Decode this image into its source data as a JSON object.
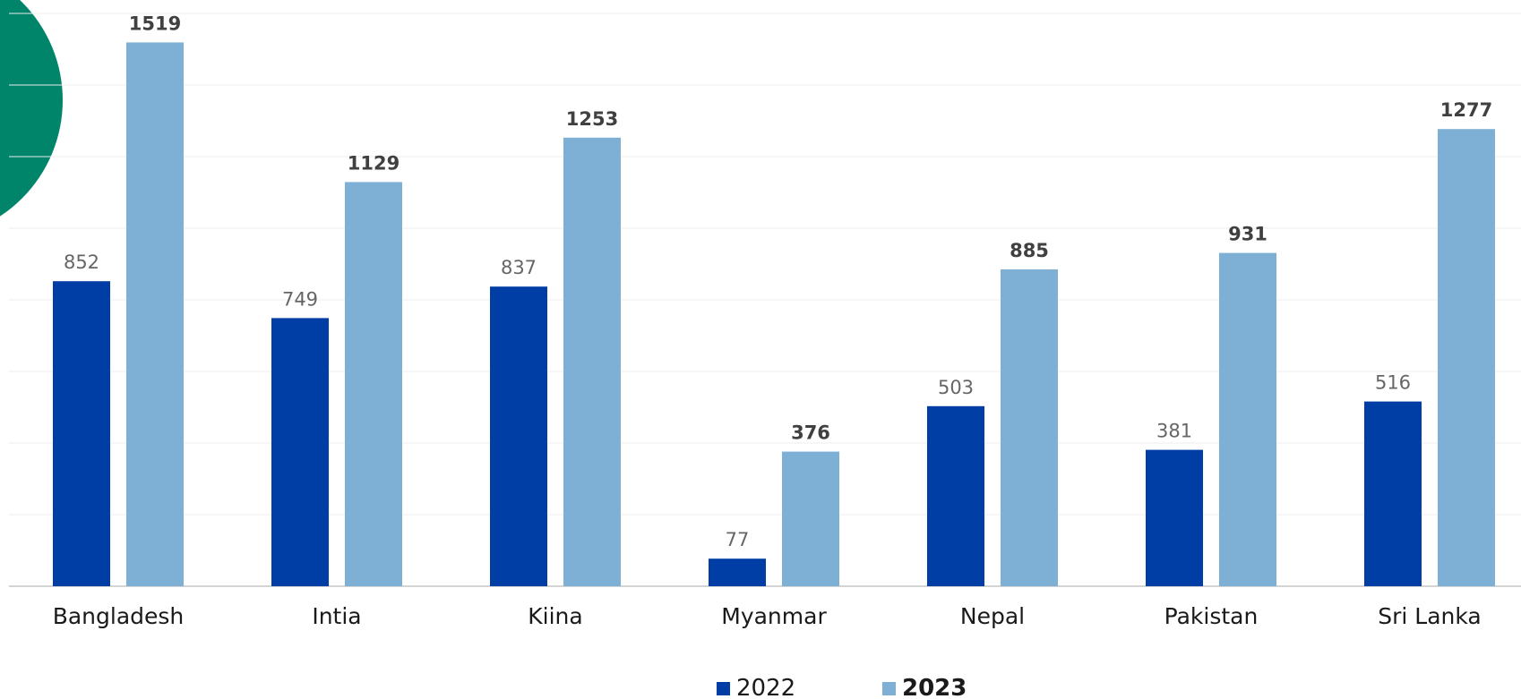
{
  "chart_data": {
    "type": "bar",
    "categories": [
      "Bangladesh",
      "Intia",
      "Kiina",
      "Myanmar",
      "Nepal",
      "Pakistan",
      "Sri Lanka"
    ],
    "series": [
      {
        "name": "2022",
        "color": "#003da5",
        "values": [
          852,
          749,
          837,
          77,
          503,
          381,
          516
        ]
      },
      {
        "name": "2023",
        "color": "#7eb0d5",
        "values": [
          1519,
          1129,
          1253,
          376,
          885,
          931,
          1277
        ]
      }
    ],
    "ylim": [
      0,
      1600
    ],
    "grid": true,
    "legend": "bottom-center",
    "decoration_color": "#00856a"
  }
}
